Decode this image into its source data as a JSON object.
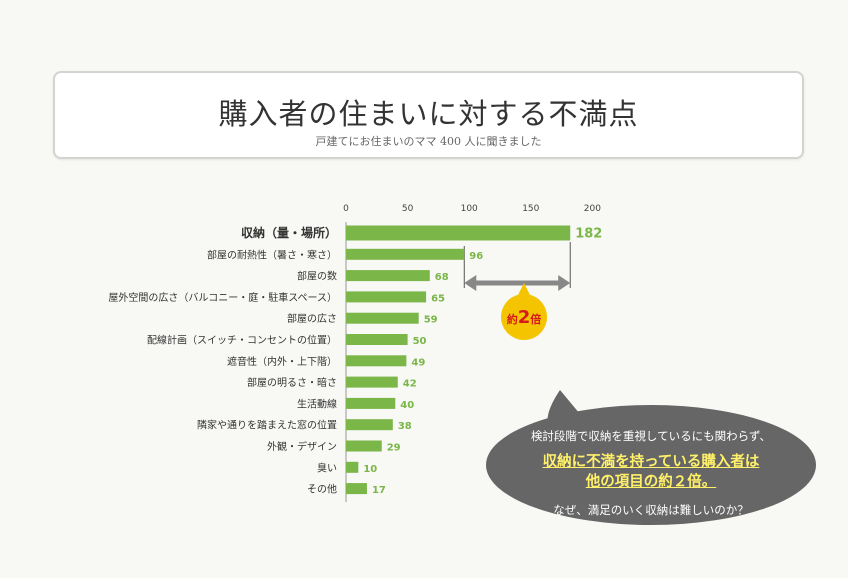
{
  "header": {
    "title": "購入者の住まいに対する不満点",
    "subtitle": "戸建てにお住まいのママ 400 人に聞きました"
  },
  "chart_data": {
    "type": "bar",
    "orientation": "horizontal",
    "title": "購入者の住まいに対する不満点",
    "subtitle": "戸建てにお住まいのママ 400 人に聞きました",
    "xlim": [
      0,
      200
    ],
    "xticks": [
      0,
      50,
      100,
      150,
      200
    ],
    "categories": [
      "収納（量・場所）",
      "部屋の耐熱性（暑さ・寒さ）",
      "部屋の数",
      "屋外空間の広さ（バルコニー・庭・駐車スペース）",
      "部屋の広さ",
      "配線計画（スイッチ・コンセントの位置）",
      "遮音性（内外・上下階）",
      "部屋の明るさ・暗さ",
      "生活動線",
      "隣家や通りを踏まえた窓の位置",
      "外観・デザイン",
      "臭い",
      "その他"
    ],
    "values": [
      182,
      96,
      68,
      65,
      59,
      50,
      49,
      42,
      40,
      38,
      29,
      10,
      17
    ],
    "highlight_category": "収納（量・場所）",
    "bar_color": "#7ab648",
    "annotation": {
      "text_prefix": "約",
      "text_number": "2",
      "text_suffix": "倍",
      "from": 96,
      "to": 182
    }
  },
  "bubble": {
    "line1": "検討段階で収納を重視しているにも関わらず、",
    "line2": "収納に不満を持っている購入者は",
    "line3": "他の項目の約２倍。",
    "line4": "なぜ、満足のいく収納は難しいのか？"
  }
}
